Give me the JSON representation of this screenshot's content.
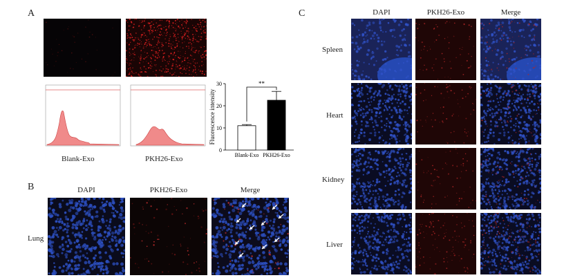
{
  "panels": {
    "A": {
      "letter": "A",
      "flow_captions": [
        "Blank-Exo",
        "PKH26-Exo"
      ],
      "chart_data": {
        "type": "bar",
        "categories": [
          "Blank-Exo",
          "PKH26-Exo"
        ],
        "values": [
          11,
          22.5
        ],
        "errors": [
          0.5,
          4
        ],
        "ylabel": "Fluorescence intensity",
        "ylim": [
          0,
          30
        ],
        "yticks": [
          "0",
          "10",
          "20",
          "30"
        ],
        "significance": "**",
        "colors": [
          "#ffffff",
          "#000000"
        ]
      }
    },
    "B": {
      "letter": "B",
      "columns": [
        "DAPI",
        "PKH26-Exo",
        "Merge"
      ],
      "row_label": "Lung"
    },
    "C": {
      "letter": "C",
      "columns": [
        "DAPI",
        "PKH26-Exo",
        "Merge"
      ],
      "rows": [
        "Spleen",
        "Heart",
        "Kidney",
        "Liver"
      ]
    }
  }
}
